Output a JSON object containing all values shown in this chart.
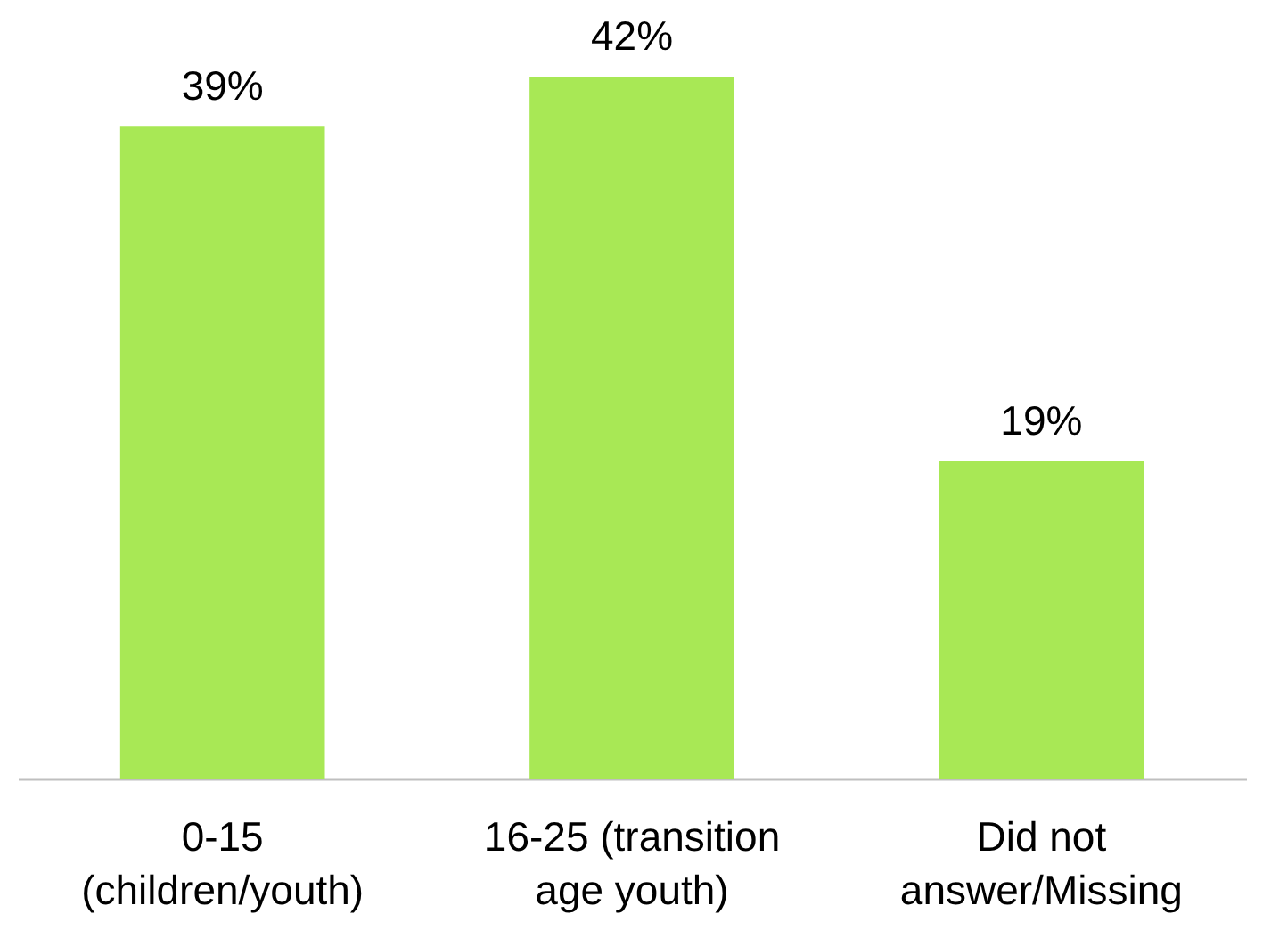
{
  "chart_data": {
    "type": "bar",
    "categories": [
      "0-15 (children/youth)",
      "16-25 (transition age youth)",
      "Did not answer/Missing"
    ],
    "values": [
      39,
      42,
      19
    ],
    "value_labels": [
      "39%",
      "42%",
      "19%"
    ],
    "color": "#a8e855"
  }
}
